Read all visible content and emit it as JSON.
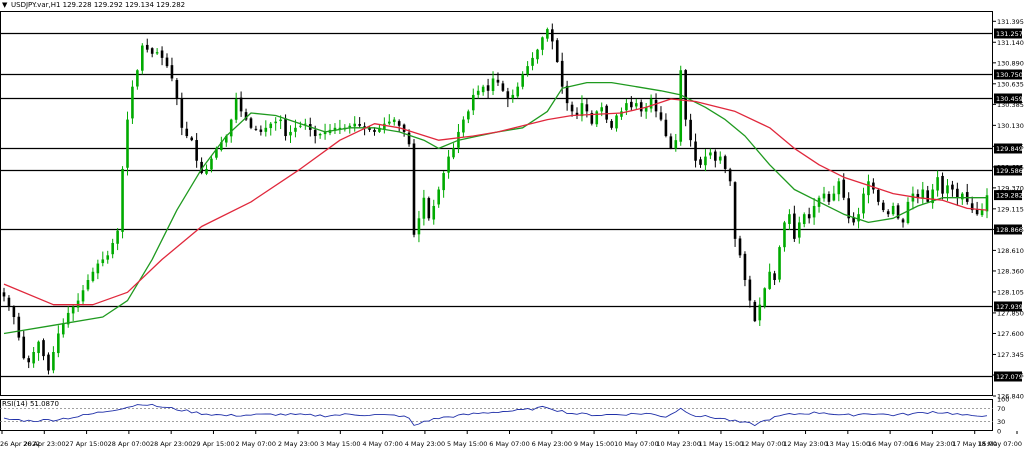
{
  "header": {
    "arrow": "▼",
    "text": "USDJPY.var,H1  129.228 129.292 129.134 129.282"
  },
  "rsi_panel": {
    "label": "RSI(14) 51.0870",
    "ticks": [
      "100",
      "70",
      "30",
      "0"
    ],
    "levels": [
      70,
      30
    ]
  },
  "colors": {
    "bull_candle": "#00aa00",
    "bear_candle": "#000000",
    "ma_fast": "#1f9a1f",
    "ma_slow": "#e0283c",
    "rsi_line": "#1f2fa8",
    "level_line": "#000000"
  },
  "chart_data": {
    "type": "candlestick",
    "symbol": "USDJPY.var",
    "timeframe": "H1",
    "last_ohlc": {
      "open": 129.228,
      "high": 129.292,
      "low": 129.134,
      "close": 129.282
    },
    "ylim": [
      126.84,
      131.52
    ],
    "y_ticks": [
      131.395,
      131.14,
      130.89,
      130.635,
      130.385,
      130.13,
      129.875,
      129.625,
      129.37,
      129.115,
      128.865,
      128.61,
      128.36,
      128.105,
      127.85,
      127.6,
      127.345,
      127.095,
      126.84
    ],
    "x_ticks": [
      "26 Apr 2022",
      "26 Apr 23:00",
      "27 Apr 15:00",
      "28 Apr 07:00",
      "28 Apr 23:00",
      "29 Apr 15:00",
      "2 May 07:00",
      "2 May 23:00",
      "3 May 15:00",
      "4 May 07:00",
      "4 May 23:00",
      "5 May 15:00",
      "6 May 07:00",
      "6 May 23:00",
      "9 May 15:00",
      "10 May 07:00",
      "10 May 23:00",
      "11 May 15:00",
      "12 May 07:00",
      "12 May 23:00",
      "13 May 15:00",
      "16 May 07:00",
      "16 May 23:00",
      "17 May 15:00",
      "18 May 07:00"
    ],
    "horizontal_levels": [
      131.257,
      130.75,
      130.459,
      129.849,
      129.586,
      128.866,
      127.939,
      127.079
    ],
    "current_price": 129.282,
    "close_path": [
      [
        0,
        128.05
      ],
      [
        2,
        127.8
      ],
      [
        4,
        127.3
      ],
      [
        5,
        127.25
      ],
      [
        7,
        127.5
      ],
      [
        9,
        127.15
      ],
      [
        11,
        127.6
      ],
      [
        13,
        127.85
      ],
      [
        15,
        128.0
      ],
      [
        17,
        128.25
      ],
      [
        19,
        128.45
      ],
      [
        21,
        128.55
      ],
      [
        23,
        128.85
      ],
      [
        24,
        129.6
      ],
      [
        25,
        130.2
      ],
      [
        26,
        130.6
      ],
      [
        27,
        130.8
      ],
      [
        28,
        131.1
      ],
      [
        29,
        131.05
      ],
      [
        30,
        131.0
      ],
      [
        31,
        131.02
      ],
      [
        32,
        130.95
      ],
      [
        33,
        130.85
      ],
      [
        34,
        130.7
      ],
      [
        35,
        130.45
      ],
      [
        36,
        130.1
      ],
      [
        37,
        130.0
      ],
      [
        38,
        129.95
      ],
      [
        39,
        129.7
      ],
      [
        40,
        129.55
      ],
      [
        41,
        129.6
      ],
      [
        43,
        129.85
      ],
      [
        45,
        130.0
      ],
      [
        46,
        130.2
      ],
      [
        47,
        130.45
      ],
      [
        48,
        130.3
      ],
      [
        50,
        130.1
      ],
      [
        52,
        130.05
      ],
      [
        54,
        130.15
      ],
      [
        56,
        130.2
      ],
      [
        57,
        130.0
      ],
      [
        59,
        130.1
      ],
      [
        61,
        130.15
      ],
      [
        63,
        130.0
      ],
      [
        65,
        130.05
      ],
      [
        67,
        130.1
      ],
      [
        69,
        130.1
      ],
      [
        71,
        130.15
      ],
      [
        73,
        130.1
      ],
      [
        75,
        130.05
      ],
      [
        77,
        130.15
      ],
      [
        79,
        130.2
      ],
      [
        81,
        130.05
      ],
      [
        82,
        129.9
      ],
      [
        83,
        128.8
      ],
      [
        84,
        129.0
      ],
      [
        85,
        129.25
      ],
      [
        86,
        129.0
      ],
      [
        87,
        129.15
      ],
      [
        88,
        129.35
      ],
      [
        89,
        129.55
      ],
      [
        90,
        129.75
      ],
      [
        91,
        129.85
      ],
      [
        92,
        130.05
      ],
      [
        93,
        130.2
      ],
      [
        94,
        130.3
      ],
      [
        95,
        130.5
      ],
      [
        96,
        130.55
      ],
      [
        97,
        130.6
      ],
      [
        98,
        130.55
      ],
      [
        99,
        130.7
      ],
      [
        100,
        130.65
      ],
      [
        101,
        130.55
      ],
      [
        102,
        130.45
      ],
      [
        103,
        130.5
      ],
      [
        104,
        130.6
      ],
      [
        105,
        130.75
      ],
      [
        106,
        130.85
      ],
      [
        107,
        130.95
      ],
      [
        108,
        131.05
      ],
      [
        109,
        131.2
      ],
      [
        110,
        131.3
      ],
      [
        111,
        131.15
      ],
      [
        112,
        130.9
      ],
      [
        113,
        130.6
      ],
      [
        114,
        130.4
      ],
      [
        115,
        130.3
      ],
      [
        116,
        130.25
      ],
      [
        117,
        130.4
      ],
      [
        118,
        130.3
      ],
      [
        119,
        130.15
      ],
      [
        120,
        130.3
      ],
      [
        121,
        130.35
      ],
      [
        122,
        130.2
      ],
      [
        123,
        130.1
      ],
      [
        124,
        130.25
      ],
      [
        125,
        130.3
      ],
      [
        126,
        130.4
      ],
      [
        127,
        130.35
      ],
      [
        128,
        130.4
      ],
      [
        129,
        130.3
      ],
      [
        130,
        130.35
      ],
      [
        131,
        130.45
      ],
      [
        132,
        130.3
      ],
      [
        133,
        130.2
      ],
      [
        134,
        130.0
      ],
      [
        135,
        129.85
      ],
      [
        136,
        129.95
      ],
      [
        137,
        130.8
      ],
      [
        138,
        130.2
      ],
      [
        139,
        129.95
      ],
      [
        140,
        129.7
      ],
      [
        141,
        129.65
      ],
      [
        142,
        129.75
      ],
      [
        143,
        129.8
      ],
      [
        144,
        129.7
      ],
      [
        145,
        129.75
      ],
      [
        146,
        129.6
      ],
      [
        147,
        129.45
      ],
      [
        148,
        128.75
      ],
      [
        149,
        128.55
      ],
      [
        150,
        128.25
      ],
      [
        151,
        128.0
      ],
      [
        152,
        127.75
      ],
      [
        153,
        127.95
      ],
      [
        154,
        128.15
      ],
      [
        155,
        128.35
      ],
      [
        156,
        128.25
      ],
      [
        157,
        128.65
      ],
      [
        158,
        128.95
      ],
      [
        159,
        129.05
      ],
      [
        160,
        128.75
      ],
      [
        161,
        128.95
      ],
      [
        162,
        129.05
      ],
      [
        163,
        129.0
      ],
      [
        164,
        129.15
      ],
      [
        165,
        129.25
      ],
      [
        166,
        129.3
      ],
      [
        167,
        129.2
      ],
      [
        168,
        129.3
      ],
      [
        169,
        129.45
      ],
      [
        170,
        129.25
      ],
      [
        171,
        129.0
      ],
      [
        172,
        128.95
      ],
      [
        173,
        129.05
      ],
      [
        174,
        129.3
      ],
      [
        175,
        129.45
      ],
      [
        176,
        129.35
      ],
      [
        177,
        129.2
      ],
      [
        178,
        129.1
      ],
      [
        179,
        129.05
      ],
      [
        180,
        129.15
      ],
      [
        181,
        129.0
      ],
      [
        182,
        128.95
      ],
      [
        183,
        129.2
      ],
      [
        184,
        129.3
      ],
      [
        185,
        129.25
      ],
      [
        186,
        129.35
      ],
      [
        187,
        129.2
      ],
      [
        188,
        129.35
      ],
      [
        189,
        129.5
      ],
      [
        190,
        129.3
      ],
      [
        191,
        129.4
      ],
      [
        192,
        129.35
      ],
      [
        193,
        129.25
      ],
      [
        194,
        129.3
      ],
      [
        195,
        129.2
      ],
      [
        196,
        129.1
      ],
      [
        197,
        129.05
      ],
      [
        198,
        129.1
      ],
      [
        199,
        129.28
      ]
    ],
    "series": [
      {
        "name": "",
        "color": "#1f9a1f",
        "values": [
          [
            0,
            127.6
          ],
          [
            10,
            127.7
          ],
          [
            20,
            127.8
          ],
          [
            25,
            128.0
          ],
          [
            30,
            128.5
          ],
          [
            35,
            129.1
          ],
          [
            40,
            129.6
          ],
          [
            45,
            130.0
          ],
          [
            50,
            130.28
          ],
          [
            55,
            130.25
          ],
          [
            60,
            130.15
          ],
          [
            65,
            130.05
          ],
          [
            70,
            130.1
          ],
          [
            75,
            130.1
          ],
          [
            80,
            130.05
          ],
          [
            85,
            129.95
          ],
          [
            88,
            129.85
          ],
          [
            92,
            129.95
          ],
          [
            96,
            130.0
          ],
          [
            100,
            130.05
          ],
          [
            105,
            130.1
          ],
          [
            110,
            130.3
          ],
          [
            113,
            130.58
          ],
          [
            118,
            130.65
          ],
          [
            123,
            130.65
          ],
          [
            128,
            130.6
          ],
          [
            133,
            130.55
          ],
          [
            137,
            130.5
          ],
          [
            142,
            130.35
          ],
          [
            146,
            130.2
          ],
          [
            150,
            130.0
          ],
          [
            155,
            129.65
          ],
          [
            160,
            129.35
          ],
          [
            165,
            129.2
          ],
          [
            170,
            129.05
          ],
          [
            175,
            128.95
          ],
          [
            180,
            129.0
          ],
          [
            185,
            129.15
          ],
          [
            190,
            129.25
          ],
          [
            195,
            129.25
          ],
          [
            199,
            129.25
          ]
        ]
      },
      {
        "name": "",
        "color": "#e0283c",
        "values": [
          [
            0,
            128.2
          ],
          [
            10,
            127.95
          ],
          [
            18,
            127.95
          ],
          [
            25,
            128.1
          ],
          [
            32,
            128.5
          ],
          [
            40,
            128.9
          ],
          [
            50,
            129.2
          ],
          [
            60,
            129.6
          ],
          [
            68,
            129.95
          ],
          [
            75,
            130.15
          ],
          [
            80,
            130.1
          ],
          [
            88,
            129.95
          ],
          [
            95,
            130.0
          ],
          [
            100,
            130.05
          ],
          [
            110,
            130.2
          ],
          [
            115,
            130.25
          ],
          [
            125,
            130.28
          ],
          [
            130,
            130.35
          ],
          [
            135,
            130.45
          ],
          [
            140,
            130.42
          ],
          [
            148,
            130.3
          ],
          [
            155,
            130.1
          ],
          [
            160,
            129.85
          ],
          [
            165,
            129.65
          ],
          [
            170,
            129.5
          ],
          [
            175,
            129.4
          ],
          [
            180,
            129.3
          ],
          [
            185,
            129.25
          ],
          [
            190,
            129.22
          ],
          [
            195,
            129.12
          ],
          [
            199,
            129.1
          ]
        ]
      }
    ],
    "rsi": {
      "name": "RSI(14)",
      "last": 51.087,
      "ylim": [
        0,
        100
      ],
      "values": [
        [
          0,
          38
        ],
        [
          5,
          32
        ],
        [
          10,
          35
        ],
        [
          15,
          45
        ],
        [
          20,
          60
        ],
        [
          25,
          75
        ],
        [
          28,
          85
        ],
        [
          32,
          75
        ],
        [
          36,
          65
        ],
        [
          40,
          55
        ],
        [
          45,
          48
        ],
        [
          50,
          50
        ],
        [
          55,
          52
        ],
        [
          60,
          50
        ],
        [
          65,
          48
        ],
        [
          70,
          52
        ],
        [
          75,
          50
        ],
        [
          80,
          48
        ],
        [
          82,
          40
        ],
        [
          83,
          15
        ],
        [
          85,
          30
        ],
        [
          88,
          40
        ],
        [
          92,
          48
        ],
        [
          96,
          55
        ],
        [
          100,
          60
        ],
        [
          105,
          65
        ],
        [
          110,
          75
        ],
        [
          112,
          65
        ],
        [
          115,
          55
        ],
        [
          120,
          50
        ],
        [
          125,
          52
        ],
        [
          130,
          55
        ],
        [
          134,
          45
        ],
        [
          137,
          70
        ],
        [
          140,
          48
        ],
        [
          145,
          40
        ],
        [
          148,
          30
        ],
        [
          150,
          25
        ],
        [
          152,
          20
        ],
        [
          155,
          38
        ],
        [
          158,
          50
        ],
        [
          162,
          55
        ],
        [
          166,
          58
        ],
        [
          170,
          48
        ],
        [
          175,
          55
        ],
        [
          180,
          50
        ],
        [
          185,
          55
        ],
        [
          188,
          60
        ],
        [
          192,
          55
        ],
        [
          196,
          45
        ],
        [
          199,
          51
        ]
      ]
    }
  }
}
